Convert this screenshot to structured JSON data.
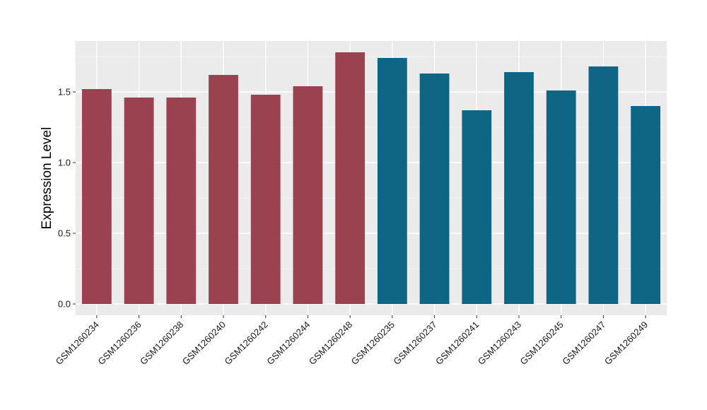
{
  "chart_data": {
    "type": "bar",
    "title": "",
    "xlabel": "",
    "ylabel": "Expression Level",
    "ylim": [
      -0.08,
      1.86
    ],
    "yticks": [
      0.0,
      0.5,
      1.0,
      1.5
    ],
    "ytick_labels": [
      "0.0",
      "0.5",
      "1.0",
      "1.5"
    ],
    "grid": true,
    "legend": "none",
    "categories": [
      "GSM1260234",
      "GSM1260236",
      "GSM1260238",
      "GSM1260240",
      "GSM1260242",
      "GSM1260244",
      "GSM1260248",
      "GSM1260235",
      "GSM1260237",
      "GSM1260241",
      "GSM1260243",
      "GSM1260245",
      "GSM1260247",
      "GSM1260249"
    ],
    "values": [
      1.52,
      1.46,
      1.46,
      1.62,
      1.48,
      1.54,
      1.78,
      1.74,
      1.63,
      1.37,
      1.64,
      1.51,
      1.68,
      1.4
    ],
    "group_index": [
      0,
      0,
      0,
      0,
      0,
      0,
      0,
      1,
      1,
      1,
      1,
      1,
      1,
      1
    ],
    "colors": {
      "group_colors": [
        "#9b4250",
        "#0e6584"
      ],
      "panel_background": "#ebebeb",
      "grid_major": "#ffffff",
      "grid_minor": "#f4f4f4",
      "tick_mark": "#333333"
    }
  }
}
